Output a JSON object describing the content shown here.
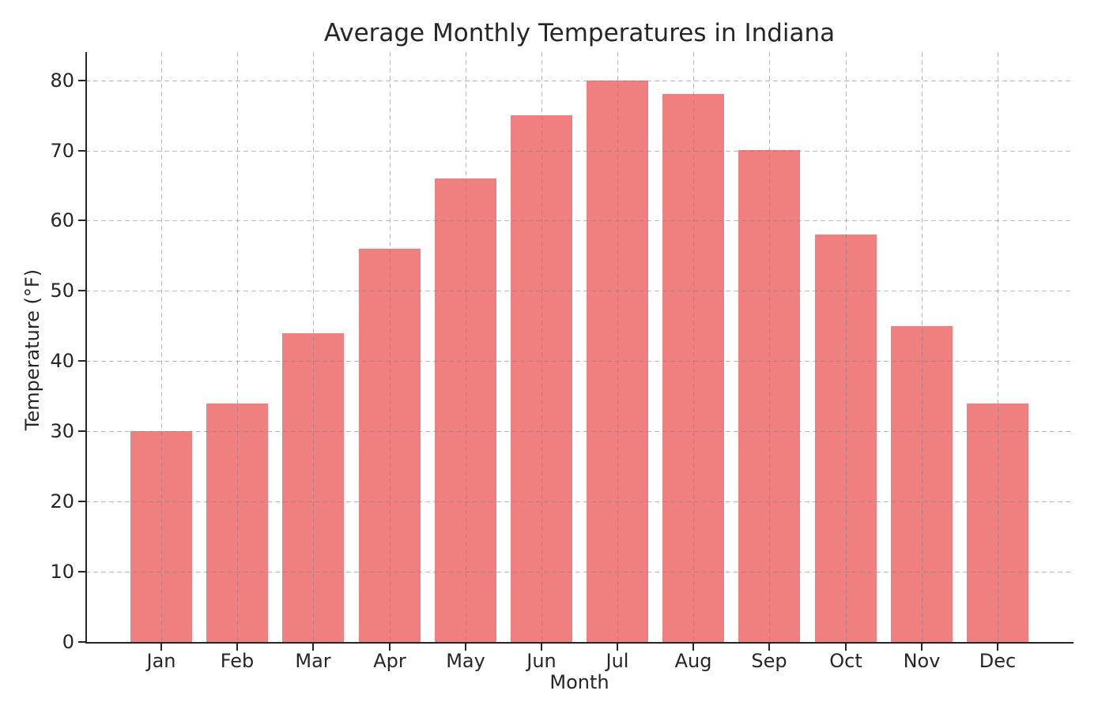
{
  "figure": {
    "background_color": "#ffffff"
  },
  "chart_data": {
    "type": "bar",
    "title": "Average Monthly Temperatures in Indiana",
    "xlabel": "Month",
    "ylabel": "Temperature (°F)",
    "categories": [
      "Jan",
      "Feb",
      "Mar",
      "Apr",
      "May",
      "Jun",
      "Jul",
      "Aug",
      "Sep",
      "Oct",
      "Nov",
      "Dec"
    ],
    "values": [
      30,
      34,
      44,
      56,
      66,
      75,
      80,
      78,
      70,
      58,
      45,
      34
    ],
    "ylim": [
      0,
      84
    ],
    "yticks": [
      0,
      10,
      20,
      30,
      40,
      50,
      60,
      70,
      80
    ],
    "grid": "dashed, both axes, drawn over bars",
    "legend_position": "none",
    "bar_color": "#f08080",
    "axis_color": "#262626",
    "text_color": "#262626",
    "grid_color": "#c9c9c9"
  }
}
